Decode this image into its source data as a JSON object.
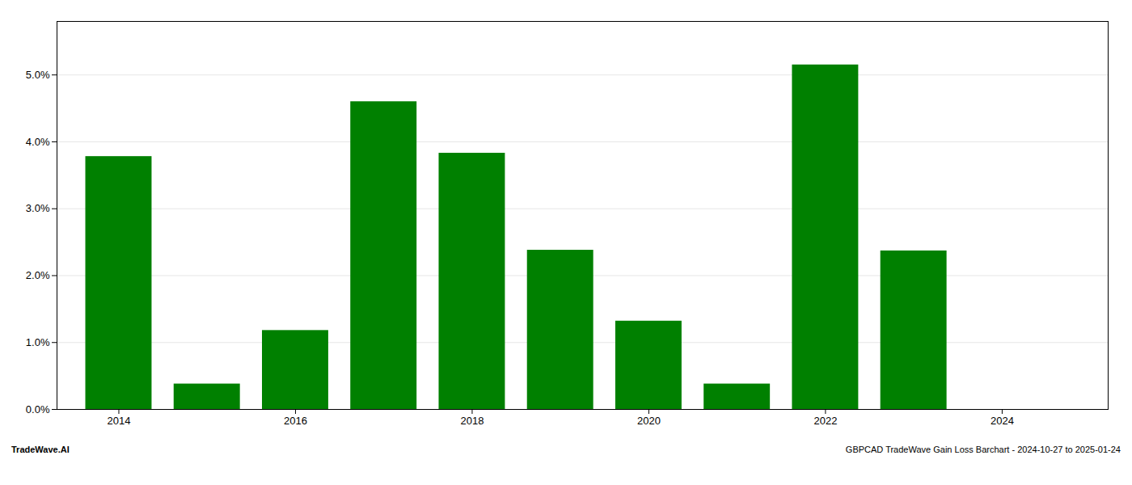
{
  "chart_data": {
    "type": "bar",
    "x": [
      2014,
      2015,
      2016,
      2017,
      2018,
      2019,
      2020,
      2021,
      2022,
      2023,
      2024
    ],
    "values": [
      3.78,
      0.38,
      1.18,
      4.6,
      3.83,
      2.38,
      1.32,
      0.38,
      5.15,
      2.37,
      0.0
    ],
    "color": "#008000",
    "xlim": [
      2013.3,
      2025.2
    ],
    "xticks": [
      2014,
      2016,
      2018,
      2020,
      2022,
      2024
    ],
    "ylim": [
      0,
      5.8
    ],
    "yticks": [
      {
        "value": 0.0,
        "label": "0.0%"
      },
      {
        "value": 1.0,
        "label": "1.0%"
      },
      {
        "value": 2.0,
        "label": "2.0%"
      },
      {
        "value": 3.0,
        "label": "3.0%"
      },
      {
        "value": 4.0,
        "label": "4.0%"
      },
      {
        "value": 5.0,
        "label": "5.0%"
      }
    ],
    "grid": true,
    "annotations": [
      "TradeWave.AI",
      "GBPCAD TradeWave Gain Loss Barchart - 2024-10-27 to 2025-01-24"
    ]
  }
}
